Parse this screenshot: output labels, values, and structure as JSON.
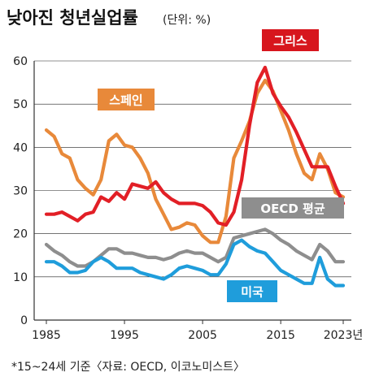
{
  "header": {
    "title": "낮아진 청년실업률",
    "unit": "(단위: %)"
  },
  "footnote": "*15~24세 기준〈자료: OECD, 이코노미스트〉",
  "chart_data": {
    "type": "line",
    "title": "낮아진 청년실업률",
    "unit_label": "(단위: %)",
    "xlim": [
      1985,
      2023
    ],
    "ylim": [
      0,
      60
    ],
    "y_ticks": [
      0,
      10,
      20,
      30,
      40,
      50,
      60
    ],
    "x_ticks": [
      1985,
      1995,
      2005,
      2015
    ],
    "x_last_label": "2023년",
    "grid": true,
    "series": [
      {
        "name": "스페인",
        "color": "#e8893a",
        "label_color": "#e8893a",
        "x": [
          1985,
          1986,
          1987,
          1988,
          1989,
          1990,
          1991,
          1992,
          1993,
          1994,
          1995,
          1996,
          1997,
          1998,
          1999,
          2000,
          2001,
          2002,
          2003,
          2004,
          2005,
          2006,
          2007,
          2008,
          2009,
          2010,
          2011,
          2012,
          2013,
          2014,
          2015,
          2016,
          2017,
          2018,
          2019,
          2020,
          2021,
          2022,
          2023
        ],
        "values": [
          44,
          42.5,
          38.5,
          37.5,
          32.5,
          30.5,
          29,
          32.5,
          41.5,
          43,
          40.5,
          40,
          37.5,
          34,
          28,
          24.5,
          21,
          21.5,
          22.5,
          22,
          19.5,
          18,
          18,
          24,
          37.5,
          41.5,
          46,
          52.5,
          55.5,
          53,
          48.5,
          44,
          38.5,
          34,
          32.5,
          38.5,
          35,
          29.5,
          28.5
        ]
      },
      {
        "name": "그리스",
        "color": "#e21f26",
        "label_color": "#d7161d",
        "x": [
          1985,
          1986,
          1987,
          1988,
          1989,
          1990,
          1991,
          1992,
          1993,
          1994,
          1995,
          1996,
          1997,
          1998,
          1999,
          2000,
          2001,
          2002,
          2003,
          2004,
          2005,
          2006,
          2007,
          2008,
          2009,
          2010,
          2011,
          2012,
          2013,
          2014,
          2015,
          2016,
          2017,
          2018,
          2019,
          2020,
          2021,
          2022,
          2023
        ],
        "values": [
          24.5,
          24.5,
          25,
          24,
          23,
          24.5,
          25,
          28.5,
          27.5,
          29.5,
          28,
          31.5,
          31,
          30.5,
          32,
          29.5,
          28,
          27,
          27,
          27,
          26.5,
          25,
          22.5,
          22,
          25,
          32.5,
          45,
          55,
          58.5,
          52.5,
          49.5,
          47,
          43.5,
          39.5,
          35.5,
          35.5,
          35.5,
          31,
          27
        ]
      },
      {
        "name": "OECD 평균",
        "color": "#8e8e8e",
        "label_color": "#8e8e8e",
        "x": [
          1985,
          1986,
          1987,
          1988,
          1989,
          1990,
          1991,
          1992,
          1993,
          1994,
          1995,
          1996,
          1997,
          1998,
          1999,
          2000,
          2001,
          2002,
          2003,
          2004,
          2005,
          2006,
          2007,
          2008,
          2009,
          2010,
          2011,
          2012,
          2013,
          2014,
          2015,
          2016,
          2017,
          2018,
          2019,
          2020,
          2021,
          2022,
          2023
        ],
        "values": [
          17.5,
          16,
          15,
          13.5,
          12.5,
          12.5,
          13.5,
          15,
          16.5,
          16.5,
          15.5,
          15.5,
          15,
          14.5,
          14.5,
          14,
          14.5,
          15.5,
          16,
          15.5,
          15.5,
          14.5,
          13.5,
          14.5,
          19,
          19.5,
          20,
          20.5,
          21,
          20,
          18.5,
          17.5,
          16,
          15,
          14,
          17.5,
          16,
          13.5,
          13.5
        ]
      },
      {
        "name": "미국",
        "color": "#1f9ddb",
        "label_color": "#1f9ddb",
        "x": [
          1985,
          1986,
          1987,
          1988,
          1989,
          1990,
          1991,
          1992,
          1993,
          1994,
          1995,
          1996,
          1997,
          1998,
          1999,
          2000,
          2001,
          2002,
          2003,
          2004,
          2005,
          2006,
          2007,
          2008,
          2009,
          2010,
          2011,
          2012,
          2013,
          2014,
          2015,
          2016,
          2017,
          2018,
          2019,
          2020,
          2021,
          2022,
          2023
        ],
        "values": [
          13.5,
          13.5,
          12.5,
          11,
          11,
          11.5,
          13.5,
          14.5,
          13.5,
          12,
          12,
          12,
          11,
          10.5,
          10,
          9.5,
          10.5,
          12,
          12.5,
          12,
          11.5,
          10.5,
          10.5,
          13,
          17.5,
          18.5,
          17,
          16,
          15.5,
          13.5,
          11.5,
          10.5,
          9.5,
          8.5,
          8.5,
          14.5,
          9.5,
          8,
          8
        ]
      }
    ]
  }
}
